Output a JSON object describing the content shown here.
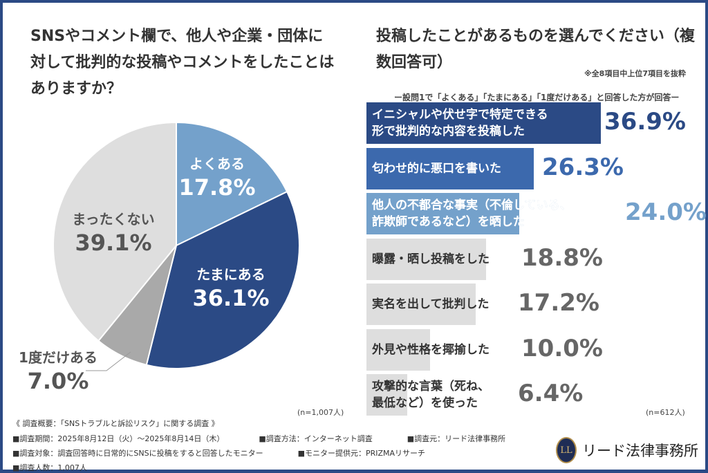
{
  "colors": {
    "navy": "#2b4a85",
    "mid": "#3c69ad",
    "light": "#74a1cb",
    "gray": "#a9a9a9",
    "lightgray": "#dedede",
    "text_gray": "#555555"
  },
  "chart_data": [
    {
      "type": "pie",
      "title": "SNSやコメント欄で、他人や企業・団体に対して批判的な投稿やコメントをしたことはありますか？",
      "note": "(n=1,007人)",
      "slices": [
        {
          "label": "よくある",
          "value": 17.8,
          "display": "17.8%",
          "color": "#74a1cb"
        },
        {
          "label": "たまにある",
          "value": 36.1,
          "display": "36.1%",
          "color": "#2b4a85"
        },
        {
          "label": "1度だけある",
          "value": 7.0,
          "display": "7.0%",
          "color": "#a9a9a9"
        },
        {
          "label": "まったくない",
          "value": 39.1,
          "display": "39.1%",
          "color": "#dedede"
        }
      ]
    },
    {
      "type": "bar",
      "orientation": "horizontal",
      "title": "投稿したことがあるものを選んでください（複数回答可）",
      "note": "※全8項目中上位7項目を抜粋",
      "subtitle": "ー設問1で「よくある」「たまにある」「1度だけある」と回答した方が回答ー",
      "n": "(n=612人)",
      "xlim": [
        0,
        100
      ],
      "categories": [
        "イニシャルや伏せ字で特定できる\n形で批判的な内容を投稿した",
        "匂わせ的に悪口を書いた",
        "他人の不都合な事実（不倫している、\n詐欺師であるなど）を晒した",
        "曝露・晒し投稿をした",
        "実名を出して批判した",
        "外見や性格を揶揄した",
        "攻撃的な言葉（死ね、\n最低など）を使った"
      ],
      "values": [
        36.9,
        26.3,
        24.0,
        18.8,
        17.2,
        10.0,
        6.4
      ],
      "display": [
        "36.9%",
        "26.3%",
        "24.0%",
        "18.8%",
        "17.2%",
        "10.0%",
        "6.4%"
      ],
      "bar_colors": [
        "#2b4a85",
        "#3c69ad",
        "#74a1cb",
        "#dedede",
        "#dedede",
        "#dedede",
        "#dedede"
      ]
    }
  ],
  "footer": {
    "heading": "《 調査概要：「SNSトラブルと訴訟リスク」に関する調査 》",
    "lines": [
      [
        "■調査期間：2025年8月12日（火）～2025年8月14日（木）",
        "■調査方法：インターネット調査",
        "■調査元：リード法律事務所"
      ],
      [
        "■調査対象：調査回答時に日常的にSNSに投稿をすると回答したモニター",
        "■モニター提供元：PRIZMAリサーチ"
      ],
      [
        "■調査人数：1,007人"
      ]
    ]
  },
  "logo": {
    "mark": "LL",
    "name": "リード法律事務所"
  }
}
